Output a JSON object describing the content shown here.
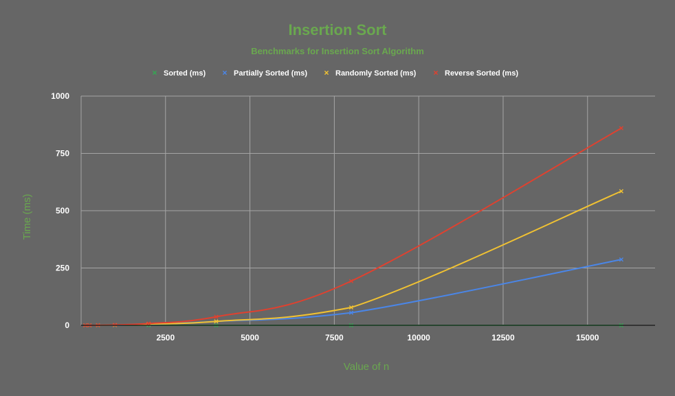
{
  "chart_data": {
    "type": "line",
    "title": "Insertion Sort",
    "subtitle": "Benchmarks for Insertion Sort Algorithm",
    "xlabel": "Value of n",
    "ylabel": "Time (ms)",
    "xlim": [
      0,
      17000
    ],
    "ylim": [
      0,
      1000
    ],
    "xticks": [
      2500,
      5000,
      7500,
      10000,
      12500,
      15000
    ],
    "yticks": [
      0,
      250,
      500,
      750,
      1000
    ],
    "grid": true,
    "legend_position": "top",
    "title_color": "#6aa84f",
    "axis_text_color": "#ffffff",
    "grid_color": "#a6a6a6",
    "series": [
      {
        "name": "Sorted (ms)",
        "color": "#34a853",
        "x": [
          125,
          250,
          500,
          1000,
          2000,
          4000,
          8000,
          16000
        ],
        "y": [
          0,
          0,
          0,
          0,
          0,
          0,
          0,
          0
        ]
      },
      {
        "name": "Partially Sorted (ms)",
        "color": "#4a86e8",
        "x": [
          125,
          250,
          500,
          1000,
          2000,
          4000,
          8000,
          16000
        ],
        "y": [
          0,
          0,
          0.2,
          0.5,
          4,
          17,
          55,
          287
        ]
      },
      {
        "name": "Randomly Sorted (ms)",
        "color": "#f1c232",
        "x": [
          125,
          250,
          500,
          1000,
          2000,
          4000,
          8000,
          16000
        ],
        "y": [
          0,
          0,
          0.3,
          1,
          5,
          17,
          78,
          585
        ]
      },
      {
        "name": "Reverse Sorted (ms)",
        "color": "#e0412f",
        "x": [
          125,
          250,
          500,
          1000,
          2000,
          4000,
          8000,
          16000
        ],
        "y": [
          0,
          0,
          0.5,
          2,
          8,
          37,
          193,
          860
        ]
      }
    ]
  }
}
